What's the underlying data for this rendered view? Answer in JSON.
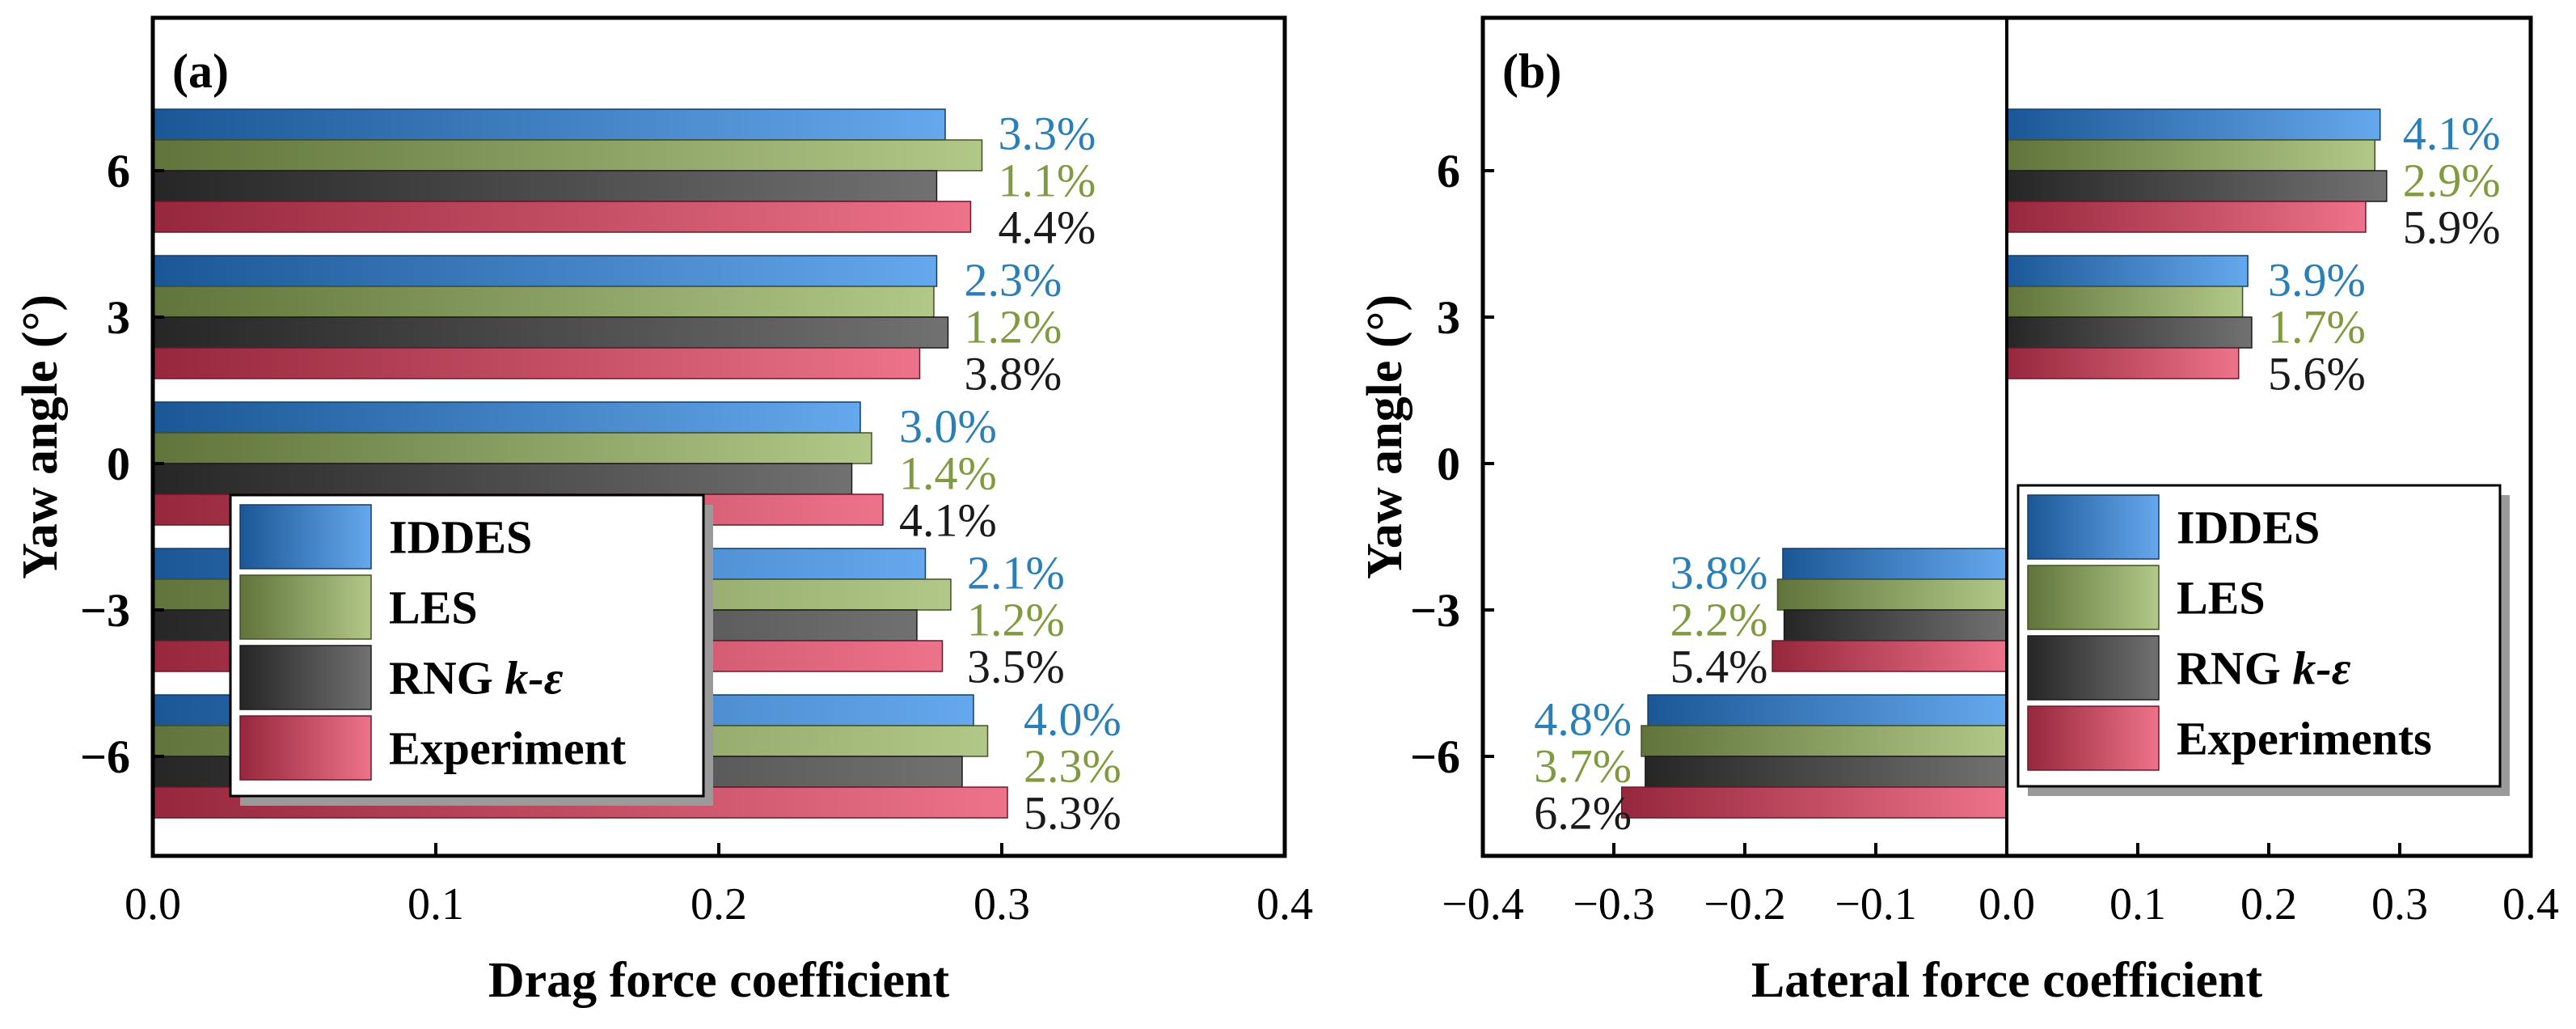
{
  "colors": {
    "IDDES": "#2a86e6",
    "LES": "#94b25a",
    "RNG": "#3a3a3a",
    "EXP": "#e63c5c",
    "pct_IDDES": "#2a7fb8",
    "pct_LES": "#7f9a3f",
    "pct_RNG": "#1a1a1a"
  },
  "chart_data": [
    {
      "type": "bar",
      "orientation": "horizontal",
      "panel_label": "(a)",
      "xlabel": "Drag force coefficient",
      "ylabel": "Yaw angle (°)",
      "xlim": [
        0.0,
        0.4
      ],
      "xticks": [
        "0.0",
        "0.1",
        "0.2",
        "0.3",
        "0.4"
      ],
      "categories": [
        "6",
        "3",
        "0",
        "−3",
        "−6"
      ],
      "series": [
        {
          "name": "IDDES",
          "key": "IDDES",
          "values": [
            0.28,
            0.277,
            0.25,
            0.273,
            0.29
          ]
        },
        {
          "name": "LES",
          "key": "LES",
          "values": [
            0.293,
            0.276,
            0.254,
            0.282,
            0.295
          ]
        },
        {
          "name": "RNG k-ε",
          "key": "RNG",
          "values": [
            0.277,
            0.281,
            0.247,
            0.27,
            0.286
          ]
        },
        {
          "name": "Experiment",
          "key": "EXP",
          "values": [
            0.289,
            0.271,
            0.258,
            0.279,
            0.302
          ]
        }
      ],
      "annotations": [
        [
          "3.3%",
          "1.1%",
          "4.4%"
        ],
        [
          "2.3%",
          "1.2%",
          "3.8%"
        ],
        [
          "3.0%",
          "1.4%",
          "4.1%"
        ],
        [
          "2.1%",
          "1.2%",
          "3.5%"
        ],
        [
          "4.0%",
          "2.3%",
          "5.3%"
        ]
      ],
      "legend": {
        "placement": "bottom-center",
        "entries": [
          {
            "key": "IDDES",
            "text": "IDDES"
          },
          {
            "key": "LES",
            "text": "LES"
          },
          {
            "key": "RNG",
            "text": "RNG k-ε",
            "main": "RNG ",
            "ital": "k-ε"
          },
          {
            "key": "EXP",
            "text": "Experiment"
          }
        ]
      }
    },
    {
      "type": "bar",
      "orientation": "horizontal",
      "panel_label": "(b)",
      "xlabel": "Lateral force coefficient",
      "ylabel": "Yaw angle (°)",
      "xlim": [
        -0.4,
        0.4
      ],
      "xticks": [
        "−0.4",
        "−0.3",
        "−0.2",
        "−0.1",
        "0.0",
        "0.1",
        "0.2",
        "0.3",
        "0.4"
      ],
      "categories": [
        "6",
        "3",
        "0",
        "−3",
        "−6"
      ],
      "series": [
        {
          "name": "IDDES",
          "key": "IDDES",
          "values": [
            0.285,
            0.184,
            0,
            -0.171,
            -0.274
          ]
        },
        {
          "name": "LES",
          "key": "LES",
          "values": [
            0.281,
            0.18,
            0,
            -0.175,
            -0.279
          ]
        },
        {
          "name": "RNG k-ε",
          "key": "RNG",
          "values": [
            0.29,
            0.187,
            0,
            -0.17,
            -0.276
          ]
        },
        {
          "name": "Experiments",
          "key": "EXP",
          "values": [
            0.274,
            0.177,
            0,
            -0.179,
            -0.294
          ]
        }
      ],
      "annotations": [
        [
          "4.1%",
          "2.9%",
          "5.9%"
        ],
        [
          "3.9%",
          "1.7%",
          "5.6%"
        ],
        null,
        [
          "3.8%",
          "2.2%",
          "5.4%"
        ],
        [
          "4.8%",
          "3.7%",
          "6.2%"
        ]
      ],
      "legend": {
        "placement": "bottom-right",
        "entries": [
          {
            "key": "IDDES",
            "text": "IDDES"
          },
          {
            "key": "LES",
            "text": "LES"
          },
          {
            "key": "RNG",
            "text": "RNG k-ε",
            "main": "RNG ",
            "ital": "k-ε"
          },
          {
            "key": "EXP",
            "text": "Experiments"
          }
        ]
      }
    }
  ]
}
